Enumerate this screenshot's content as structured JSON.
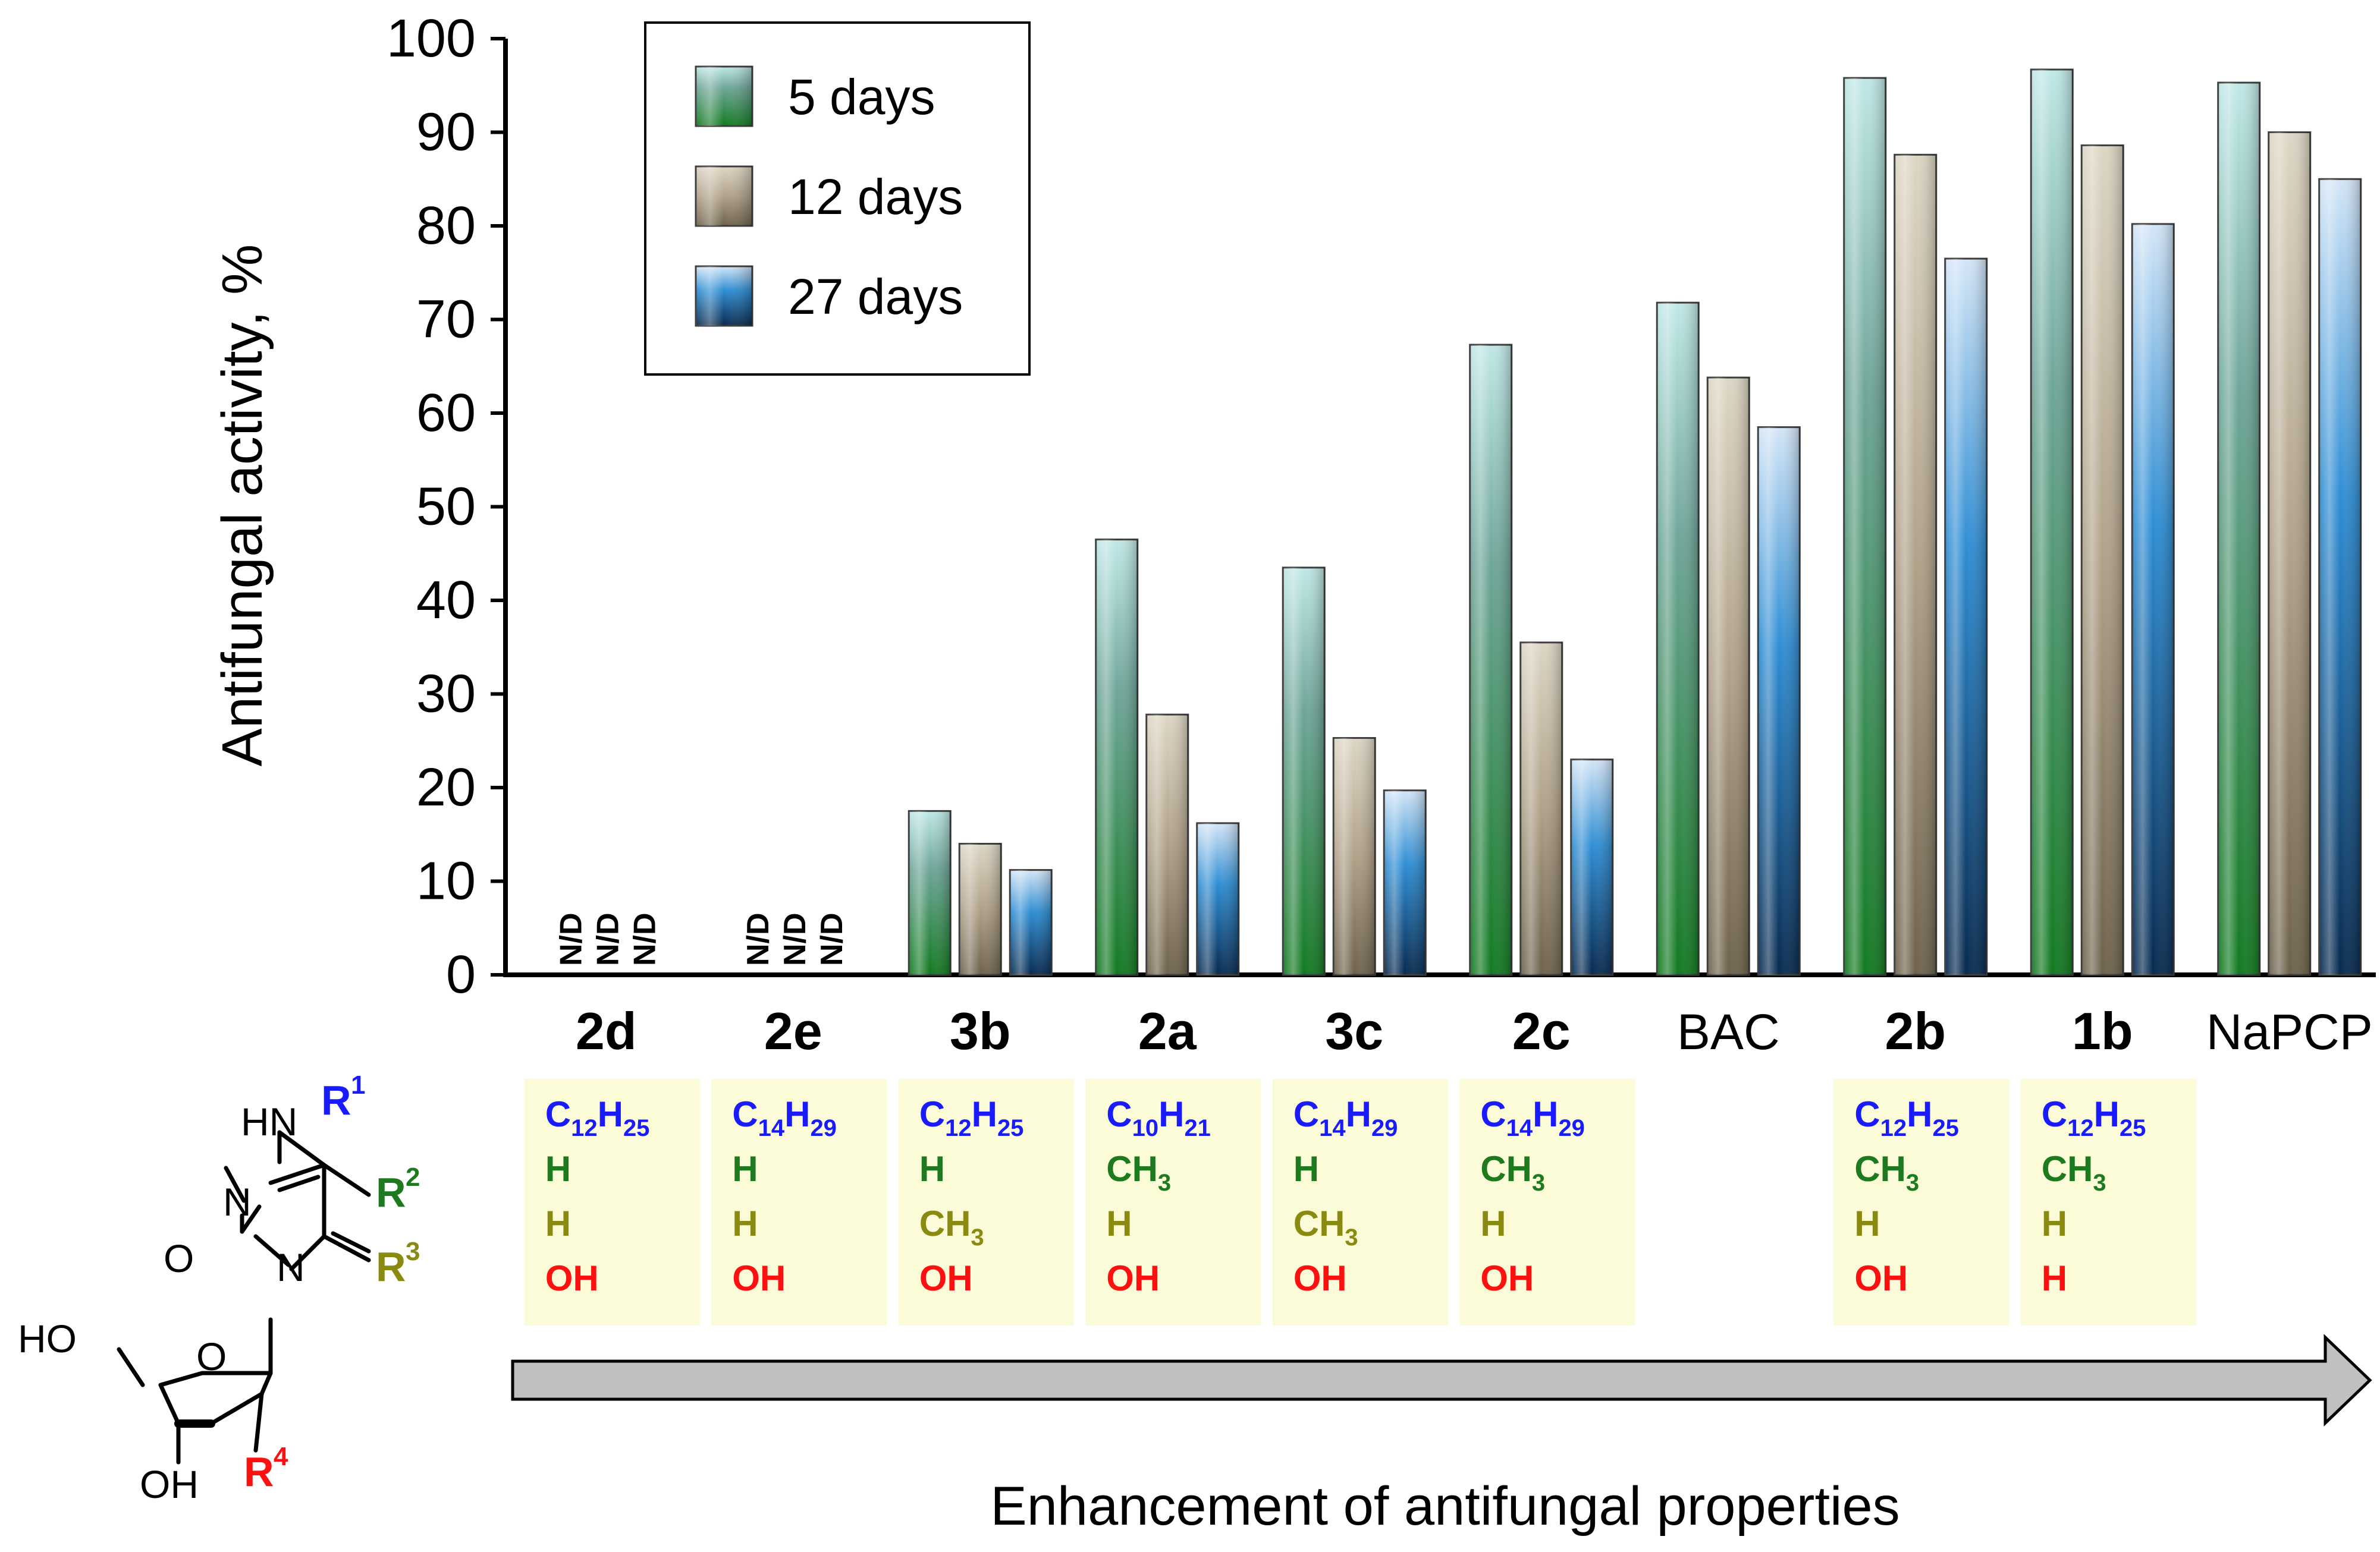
{
  "chart_data": {
    "type": "bar",
    "title": "",
    "ylabel": "Antifungal activity, %",
    "xlabel": "Enhancement of antifungal properties",
    "ylim": [
      0,
      100
    ],
    "yticks": [
      0,
      10,
      20,
      30,
      40,
      50,
      60,
      70,
      80,
      90,
      100
    ],
    "grid": false,
    "legend_position": "top-left",
    "categories": [
      {
        "label": "2d",
        "bold": true
      },
      {
        "label": "2e",
        "bold": true
      },
      {
        "label": "3b",
        "bold": true
      },
      {
        "label": "2a",
        "bold": true
      },
      {
        "label": "3c",
        "bold": true
      },
      {
        "label": "2c",
        "bold": true
      },
      {
        "label": "BAC",
        "bold": false
      },
      {
        "label": "2b",
        "bold": true
      },
      {
        "label": "1b",
        "bold": true
      },
      {
        "label": "NaPCP",
        "bold": false
      }
    ],
    "series": [
      {
        "name": "5 days",
        "color": "green-gradient",
        "values": [
          null,
          null,
          17.5,
          46.5,
          43.5,
          67.3,
          71.8,
          95.8,
          96.7,
          95.3
        ]
      },
      {
        "name": "12 days",
        "color": "tan-gradient",
        "values": [
          null,
          null,
          14,
          27.8,
          25.3,
          35.5,
          63.8,
          87.6,
          88.6,
          90
        ]
      },
      {
        "name": "27 days",
        "color": "blue-gradient",
        "values": [
          null,
          null,
          11.2,
          16.2,
          19.7,
          23,
          58.5,
          76.5,
          80.2,
          85
        ]
      }
    ],
    "nd_label": "N/D",
    "substituent_boxes": [
      {
        "category": "2d",
        "rows": [
          {
            "t": "C",
            "s1": "12",
            "t2": "H",
            "s2": "25",
            "c": "blue"
          },
          {
            "t": "H",
            "c": "green"
          },
          {
            "t": "H",
            "c": "olive"
          },
          {
            "t": "OH",
            "c": "red"
          }
        ]
      },
      {
        "category": "2e",
        "rows": [
          {
            "t": "C",
            "s1": "14",
            "t2": "H",
            "s2": "29",
            "c": "blue"
          },
          {
            "t": "H",
            "c": "green"
          },
          {
            "t": "H",
            "c": "olive"
          },
          {
            "t": "OH",
            "c": "red"
          }
        ]
      },
      {
        "category": "3b",
        "rows": [
          {
            "t": "C",
            "s1": "12",
            "t2": "H",
            "s2": "25",
            "c": "blue"
          },
          {
            "t": "H",
            "c": "green"
          },
          {
            "t": "CH",
            "s1": "3",
            "c": "olive"
          },
          {
            "t": "OH",
            "c": "red"
          }
        ]
      },
      {
        "category": "2a",
        "rows": [
          {
            "t": "C",
            "s1": "10",
            "t2": "H",
            "s2": "21",
            "c": "blue"
          },
          {
            "t": "CH",
            "s1": "3",
            "c": "green"
          },
          {
            "t": "H",
            "c": "olive"
          },
          {
            "t": "OH",
            "c": "red"
          }
        ]
      },
      {
        "category": "3c",
        "rows": [
          {
            "t": "C",
            "s1": "14",
            "t2": "H",
            "s2": "29",
            "c": "blue"
          },
          {
            "t": "H",
            "c": "green"
          },
          {
            "t": "CH",
            "s1": "3",
            "c": "olive"
          },
          {
            "t": "OH",
            "c": "red"
          }
        ]
      },
      {
        "category": "2c",
        "rows": [
          {
            "t": "C",
            "s1": "14",
            "t2": "H",
            "s2": "29",
            "c": "blue"
          },
          {
            "t": "CH",
            "s1": "3",
            "c": "green"
          },
          {
            "t": "H",
            "c": "olive"
          },
          {
            "t": "OH",
            "c": "red"
          }
        ]
      },
      {
        "category": "2b",
        "rows": [
          {
            "t": "C",
            "s1": "12",
            "t2": "H",
            "s2": "25",
            "c": "blue"
          },
          {
            "t": "CH",
            "s1": "3",
            "c": "green"
          },
          {
            "t": "H",
            "c": "olive"
          },
          {
            "t": "OH",
            "c": "red"
          }
        ]
      },
      {
        "category": "1b",
        "rows": [
          {
            "t": "C",
            "s1": "12",
            "t2": "H",
            "s2": "25",
            "c": "blue"
          },
          {
            "t": "CH",
            "s1": "3",
            "c": "green"
          },
          {
            "t": "H",
            "c": "olive"
          },
          {
            "t": "H",
            "c": "red"
          }
        ]
      }
    ],
    "structure_labels": {
      "nh": "HN",
      "r1": "R",
      "r1_sup": "1",
      "r2": "R",
      "r2_sup": "2",
      "r3": "R",
      "r3_sup": "3",
      "r4": "R",
      "r4_sup": "4",
      "n3": "N",
      "n1": "N",
      "o_carbonyl": "O",
      "o_ring": "O",
      "ho": "HO",
      "oh": "OH"
    }
  },
  "colors": {
    "blue": "#1a1aff",
    "green": "#1e7a1e",
    "olive": "#8a8a10",
    "red": "#ff1010",
    "box_bg": "#fbfbd7",
    "arrow_fill": "#c0c0c0",
    "axis": "#000000"
  }
}
